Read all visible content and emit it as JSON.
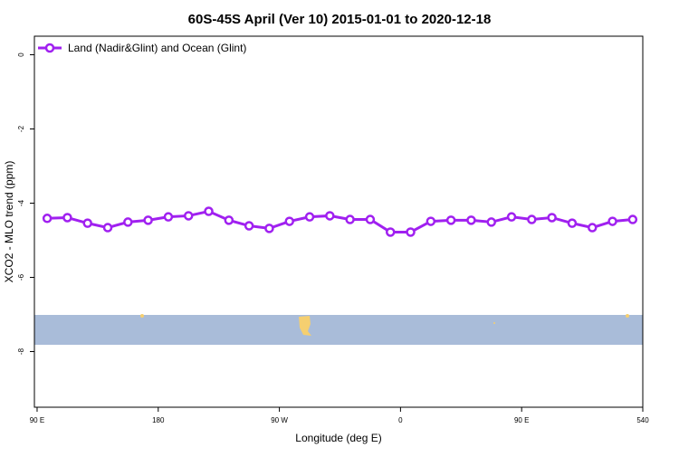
{
  "chart_data": {
    "type": "line",
    "title": "60S-45S April (Ver 10)   2015-01-01 to 2020-12-18",
    "x_label": "Longitude (deg E)",
    "y_label": "XCO2 - MLO trend (ppm)",
    "x": [
      97.5,
      112.5,
      127.5,
      142.5,
      157.5,
      172.5,
      187.5,
      202.5,
      217.5,
      232.5,
      247.5,
      262.5,
      277.5,
      292.5,
      307.5,
      322.5,
      337.5,
      352.5,
      367.5,
      382.5,
      397.5,
      412.5,
      427.5,
      442.5,
      457.5,
      472.5,
      487.5,
      502.5,
      517.5,
      532.5
    ],
    "series": [
      {
        "name": "Land (Nadir&Glint) and Ocean (Glint)",
        "color": "#a020f0",
        "values": [
          -4.41,
          -4.39,
          -4.54,
          -4.66,
          -4.51,
          -4.46,
          -4.37,
          -4.34,
          -4.22,
          -4.46,
          -4.61,
          -4.68,
          -4.49,
          -4.37,
          -4.34,
          -4.44,
          -4.44,
          -4.78,
          -4.78,
          -4.49,
          -4.46,
          -4.46,
          -4.51,
          -4.37,
          -4.44,
          -4.39,
          -4.54,
          -4.66,
          -4.49,
          -4.44
        ]
      }
    ],
    "xlim": [
      88,
      540
    ],
    "xticks": [
      {
        "value": 90,
        "label": "90 E"
      },
      180,
      {
        "value": 270,
        "label": "90 W"
      },
      {
        "value": 360,
        "label": "0"
      },
      {
        "value": 450,
        "label": "90 E"
      },
      540
    ],
    "ylim": [
      -9.5,
      0.5
    ],
    "yticks": [
      0,
      -2,
      -4,
      -6,
      -8
    ],
    "legend": "top-left"
  }
}
